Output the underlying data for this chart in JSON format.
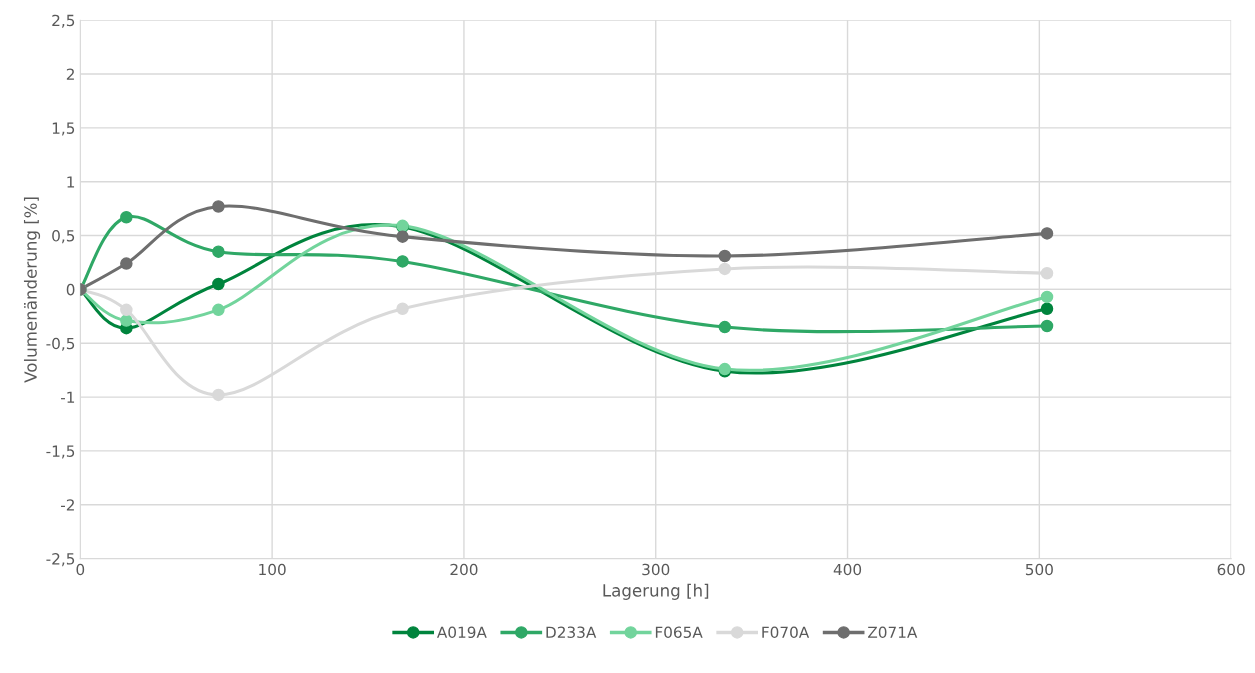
{
  "chart_data": {
    "type": "line",
    "xlabel": "Lagerung [h]",
    "ylabel": "Volumenänderung [%]",
    "x": [
      0,
      24,
      72,
      168,
      336,
      504
    ],
    "series": [
      {
        "name": "A019A",
        "color": "#00843d",
        "values": [
          0,
          -0.36,
          0.05,
          0.58,
          -0.76,
          -0.18
        ]
      },
      {
        "name": "D233A",
        "color": "#2fa866",
        "values": [
          0,
          0.67,
          0.35,
          0.26,
          -0.35,
          -0.34
        ]
      },
      {
        "name": "F065A",
        "color": "#72d49c",
        "values": [
          0,
          -0.29,
          -0.19,
          0.59,
          -0.74,
          -0.07
        ]
      },
      {
        "name": "F070A",
        "color": "#d9d9d9",
        "values": [
          0,
          -0.19,
          -0.98,
          -0.18,
          0.19,
          0.15
        ]
      },
      {
        "name": "Z071A",
        "color": "#6e6e6e",
        "values": [
          0,
          0.24,
          0.77,
          0.49,
          0.31,
          0.52
        ]
      }
    ],
    "xlim": [
      0,
      600
    ],
    "xticks": [
      0,
      100,
      200,
      300,
      400,
      500,
      600
    ],
    "ylim": [
      -2.5,
      2.5
    ],
    "yticks": [
      {
        "value": -2.5,
        "label": "-2,5"
      },
      -2,
      {
        "value": -1.5,
        "label": "-1,5"
      },
      -1,
      {
        "value": -0.5,
        "label": "-0,5"
      },
      0,
      {
        "value": 0.5,
        "label": "0,5"
      },
      1,
      {
        "value": 1.5,
        "label": "1,5"
      },
      2,
      {
        "value": 2.5,
        "label": "2,5"
      }
    ],
    "grid": true,
    "legend": "bottom",
    "marker": "circle",
    "line_style": "solid"
  }
}
